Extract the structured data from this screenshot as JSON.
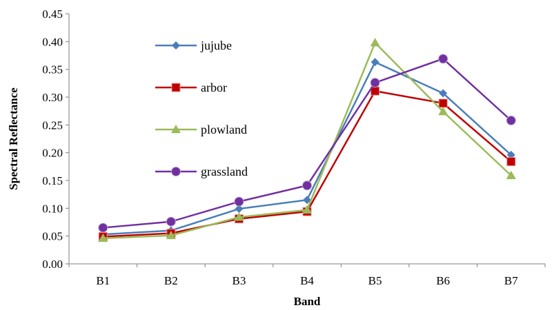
{
  "chart_data": {
    "type": "line",
    "xlabel": "Band",
    "ylabel": "Spectral Reflectance",
    "categories": [
      "B1",
      "B2",
      "B3",
      "B4",
      "B5",
      "B6",
      "B7"
    ],
    "ylim": [
      0,
      0.45
    ],
    "yticks": [
      "0.00",
      "0.05",
      "0.10",
      "0.15",
      "0.20",
      "0.25",
      "0.30",
      "0.35",
      "0.40",
      "0.45"
    ],
    "grid": false,
    "legend": "upper-left inside",
    "series": [
      {
        "name": "jujube",
        "color": "#4A7EBB",
        "marker": "diamond",
        "values": [
          0.053,
          0.06,
          0.099,
          0.115,
          0.363,
          0.307,
          0.196
        ]
      },
      {
        "name": "arbor",
        "color": "#C00000",
        "marker": "square",
        "values": [
          0.049,
          0.055,
          0.081,
          0.094,
          0.311,
          0.289,
          0.184
        ]
      },
      {
        "name": "plowland",
        "color": "#9BBB59",
        "marker": "triangle",
        "values": [
          0.046,
          0.051,
          0.084,
          0.097,
          0.398,
          0.274,
          0.159
        ]
      },
      {
        "name": "grassland",
        "color": "#7030A0",
        "marker": "circle",
        "values": [
          0.065,
          0.076,
          0.112,
          0.141,
          0.326,
          0.369,
          0.258
        ]
      }
    ]
  }
}
